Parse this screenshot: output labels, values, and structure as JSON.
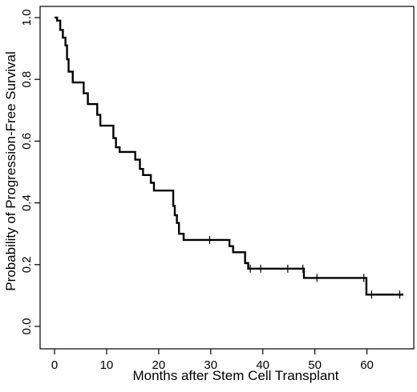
{
  "chart_data": {
    "type": "line",
    "subtype": "kaplan-meier-step",
    "title": "",
    "xlabel": "Months after Stem Cell Transplant",
    "ylabel": "Probability of Progression-Free Survival",
    "xlim": [
      0,
      68
    ],
    "ylim": [
      0,
      1
    ],
    "x_ticks": [
      "0",
      "10",
      "20",
      "30",
      "40",
      "50",
      "60"
    ],
    "y_ticks": [
      "0.0",
      "0.2",
      "0.4",
      "0.6",
      "0.8",
      "1.0"
    ],
    "grid": false,
    "legend": "none",
    "series": [
      {
        "x": [
          0,
          0.5,
          1.1,
          1.6,
          2.1,
          2.4,
          2.7,
          3.0,
          3.5,
          4.0,
          5.6,
          6.4,
          7.0,
          8.2,
          8.8,
          9.5,
          11.3,
          11.8,
          12.5,
          15.5,
          16.4,
          17.0,
          17.7,
          18.5,
          19.1,
          20.1,
          22.8,
          23.1,
          23.5,
          23.9,
          24.3,
          24.8,
          25.6,
          33.6,
          34.3,
          35.5,
          36.6,
          37.2,
          37.8,
          47.9,
          59.9,
          67.0
        ],
        "y": [
          1.0,
          0.99,
          0.96,
          0.935,
          0.91,
          0.865,
          0.825,
          0.825,
          0.79,
          0.79,
          0.755,
          0.72,
          0.72,
          0.685,
          0.65,
          0.65,
          0.61,
          0.58,
          0.565,
          0.54,
          0.51,
          0.49,
          0.49,
          0.465,
          0.44,
          0.44,
          0.39,
          0.36,
          0.335,
          0.3,
          0.3,
          0.28,
          0.28,
          0.26,
          0.24,
          0.24,
          0.205,
          0.187,
          0.187,
          0.157,
          0.103,
          0.103
        ]
      }
    ],
    "censor_x": [
      29.8,
      37.6,
      39.6,
      44.8,
      47.7,
      50.4,
      59.4,
      60.9,
      66.3
    ],
    "colors": {
      "line": "#000000",
      "background": "#ffffff"
    }
  }
}
